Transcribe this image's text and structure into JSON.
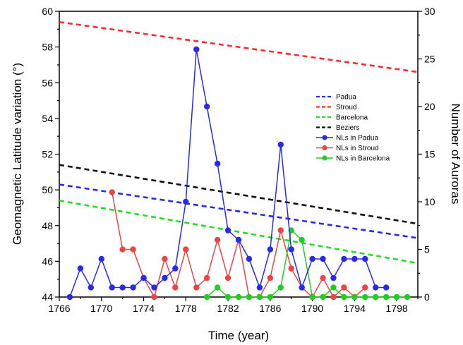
{
  "chart_data": {
    "type": "line",
    "xlabel": "Time (year)",
    "ylabel_left": "Geomagnetic Latitude variation (°)",
    "ylabel_right": "Number of Auroras",
    "xlim": [
      1766,
      1800
    ],
    "ylim_left": [
      44,
      60
    ],
    "ylim_right": [
      0,
      30
    ],
    "x_ticks": [
      1766,
      1770,
      1774,
      1778,
      1782,
      1786,
      1790,
      1794,
      1798
    ],
    "y_left_ticks": [
      44,
      46,
      48,
      50,
      52,
      54,
      56,
      58,
      60
    ],
    "y_right_ticks": [
      0,
      5,
      10,
      15,
      20,
      25,
      30
    ],
    "legend_position": "right-center",
    "latitude_series": [
      {
        "name": "Padua",
        "color": "#2a2aee",
        "x": [
          1766,
          1800
        ],
        "y": [
          50.3,
          47.3
        ]
      },
      {
        "name": "Stroud",
        "color": "#ff2a2a",
        "x": [
          1766,
          1800
        ],
        "y": [
          59.4,
          56.6
        ]
      },
      {
        "name": "Barcelona",
        "color": "#22dd22",
        "x": [
          1766,
          1800
        ],
        "y": [
          49.4,
          45.9
        ]
      },
      {
        "name": "Beziers",
        "color": "#111111",
        "x": [
          1766,
          1800
        ],
        "y": [
          51.4,
          48.1
        ]
      }
    ],
    "aurora_series": [
      {
        "name": "NLs in Padua",
        "color": "#2a2aee",
        "x": [
          1767,
          1768,
          1769,
          1770,
          1771,
          1772,
          1773,
          1774,
          1775,
          1776,
          1777,
          1778,
          1779,
          1780,
          1781,
          1782,
          1783,
          1784,
          1785,
          1786,
          1787,
          1788,
          1789,
          1790,
          1791,
          1792,
          1793,
          1794,
          1795,
          1796,
          1797
        ],
        "y": [
          0,
          3,
          1,
          4,
          1,
          1,
          1,
          2,
          1,
          2,
          3,
          10,
          26,
          20,
          14,
          7,
          6,
          4,
          1,
          5,
          16,
          5,
          1,
          4,
          4,
          2,
          4,
          4,
          4,
          1,
          1
        ]
      },
      {
        "name": "NLs in Stroud",
        "color": "#ee4444",
        "x": [
          1771,
          1772,
          1773,
          1774,
          1775,
          1776,
          1777,
          1778,
          1779,
          1780,
          1781,
          1782,
          1783,
          1784,
          1785,
          1786,
          1787,
          1788,
          1789,
          1790,
          1791,
          1792,
          1793,
          1794,
          1795
        ],
        "y": [
          11,
          5,
          5,
          2,
          0,
          4,
          1,
          5,
          1,
          2,
          6,
          2,
          6,
          0,
          0,
          2,
          7,
          3,
          1,
          0,
          2,
          0,
          1,
          0,
          1
        ]
      },
      {
        "name": "NLs in Barcelona",
        "color": "#22cc22",
        "x": [
          1780,
          1781,
          1782,
          1783,
          1784,
          1785,
          1786,
          1787,
          1788,
          1789,
          1790,
          1791,
          1792,
          1793,
          1794,
          1795,
          1796,
          1797,
          1798,
          1799
        ],
        "y": [
          0,
          1,
          0,
          0,
          0,
          0,
          0,
          1,
          7,
          6,
          0,
          0,
          1,
          0,
          0,
          0,
          0,
          0,
          0,
          0
        ]
      }
    ]
  }
}
